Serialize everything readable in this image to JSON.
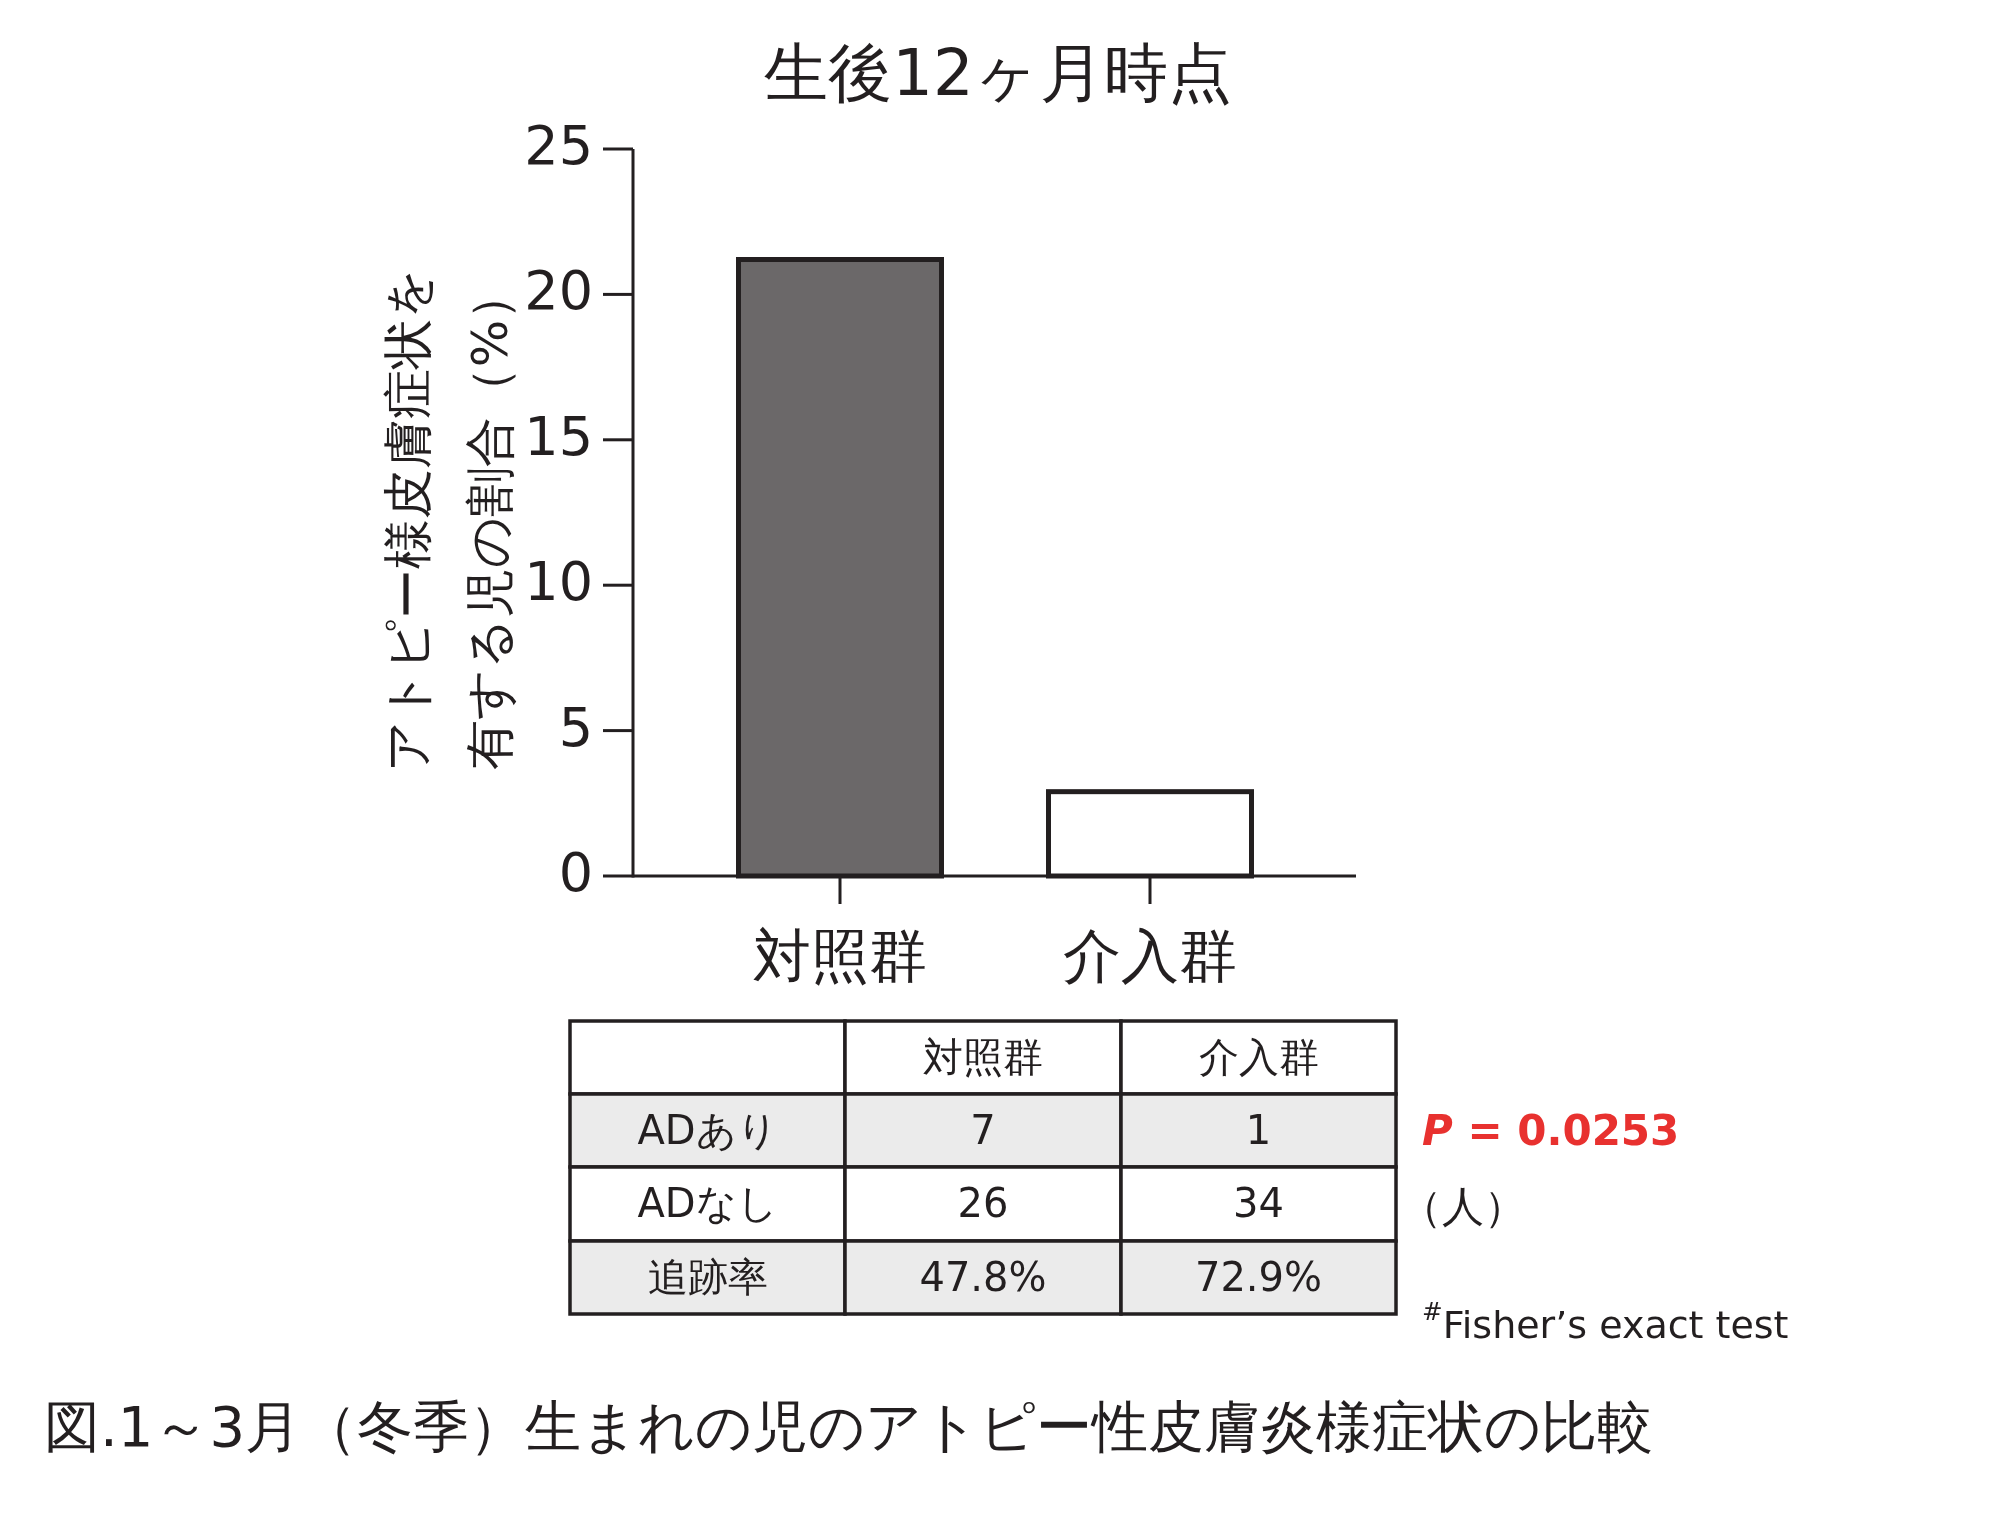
{
  "chart_data": {
    "type": "bar",
    "title": "生後12ヶ月時点",
    "ylabel": "アトピー様皮膚症状を有する児の割合（%）",
    "categories": [
      "対照群",
      "介入群"
    ],
    "values": [
      21.2,
      2.9
    ],
    "colors": [
      "#6b6869",
      "#ffffff"
    ],
    "ylim": [
      0,
      25
    ],
    "yticks": [
      0,
      5,
      10,
      15,
      20,
      25
    ],
    "grid": false,
    "annotations": [
      "対照群",
      "介入群",
      "ADあり",
      "7",
      "1",
      "ADなし",
      "26",
      "34",
      "追跡率",
      "47.8%",
      "72.9%",
      "*P* = 0.0253",
      "（人）",
      "$^{#}$Fisher’s exact test",
      "図.1～3月（冬季）生まれの児のアトピー性皮膚炎様症状の比較"
    ]
  }
}
